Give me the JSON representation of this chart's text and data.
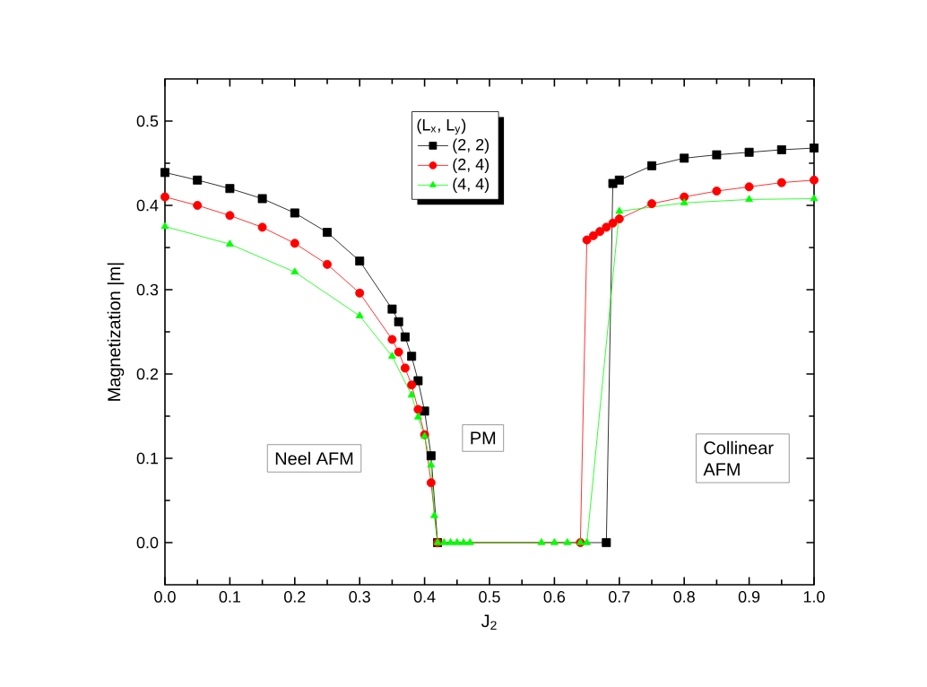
{
  "chart_data": {
    "type": "line",
    "xlabel": "J$_{2}$",
    "ylabel": "Magnetization |m|",
    "legend_title": "(L$_{x}$, L$_{y}$)",
    "legend": "top",
    "grid": false,
    "xlim": [
      0,
      1
    ],
    "ylim": [
      -0.05,
      0.55
    ],
    "xticks": [
      {
        "value": 0,
        "label": "0.0"
      },
      {
        "value": 0.1,
        "label": "0.1"
      },
      {
        "value": 0.2,
        "label": "0.2"
      },
      {
        "value": 0.3,
        "label": "0.3"
      },
      {
        "value": 0.4,
        "label": "0.4"
      },
      {
        "value": 0.5,
        "label": "0.5"
      },
      {
        "value": 0.6,
        "label": "0.6"
      },
      {
        "value": 0.7,
        "label": "0.7"
      },
      {
        "value": 0.8,
        "label": "0.8"
      },
      {
        "value": 0.9,
        "label": "0.9"
      },
      {
        "value": 1,
        "label": "1.0"
      }
    ],
    "yticks": [
      {
        "value": 0,
        "label": "0.0"
      },
      {
        "value": 0.1,
        "label": "0.1"
      },
      {
        "value": 0.2,
        "label": "0.2"
      },
      {
        "value": 0.3,
        "label": "0.3"
      },
      {
        "value": 0.4,
        "label": "0.4"
      },
      {
        "value": 0.5,
        "label": "0.5"
      }
    ],
    "annotations": [
      "Neel AFM",
      "PM",
      "Collinear AFM"
    ],
    "series": [
      {
        "name": "(2, 2)",
        "color": "#000000",
        "marker": "square",
        "x": [
          0,
          0.05,
          0.1,
          0.15,
          0.2,
          0.25,
          0.3,
          0.35,
          0.36,
          0.37,
          0.38,
          0.39,
          0.4,
          0.41,
          0.42,
          0.68,
          0.69,
          0.7,
          0.75,
          0.8,
          0.85,
          0.9,
          0.95,
          1.0
        ],
        "values": [
          0.439,
          0.43,
          0.42,
          0.408,
          0.391,
          0.368,
          0.334,
          0.277,
          0.262,
          0.244,
          0.221,
          0.192,
          0.156,
          0.103,
          0.0,
          0.0,
          0.426,
          0.43,
          0.447,
          0.456,
          0.46,
          0.463,
          0.466,
          0.468
        ]
      },
      {
        "name": "(2, 4)",
        "color": "#ff0000",
        "marker": "circle",
        "x": [
          0,
          0.05,
          0.1,
          0.15,
          0.2,
          0.25,
          0.3,
          0.35,
          0.36,
          0.37,
          0.38,
          0.39,
          0.4,
          0.41,
          0.42,
          0.64,
          0.65,
          0.66,
          0.67,
          0.68,
          0.69,
          0.7,
          0.75,
          0.8,
          0.85,
          0.9,
          0.95,
          1.0
        ],
        "values": [
          0.41,
          0.4,
          0.388,
          0.374,
          0.355,
          0.33,
          0.296,
          0.241,
          0.226,
          0.207,
          0.187,
          0.158,
          0.128,
          0.071,
          0.0,
          0.0,
          0.359,
          0.364,
          0.369,
          0.374,
          0.379,
          0.384,
          0.402,
          0.41,
          0.417,
          0.422,
          0.427,
          0.43
        ]
      },
      {
        "name": "(4, 4)",
        "color": "#00ff00",
        "marker": "triangle",
        "x": [
          0,
          0.1,
          0.2,
          0.3,
          0.35,
          0.38,
          0.39,
          0.4,
          0.41,
          0.415,
          0.42,
          0.43,
          0.44,
          0.45,
          0.46,
          0.47,
          0.58,
          0.6,
          0.62,
          0.64,
          0.65,
          0.7,
          0.8,
          0.9,
          1.0
        ],
        "values": [
          0.375,
          0.354,
          0.321,
          0.269,
          0.221,
          0.175,
          0.149,
          0.126,
          0.092,
          0.032,
          0.0,
          0.0,
          0.0,
          0.0,
          0.0,
          0.0,
          0.0,
          0.0,
          0.0,
          0.0,
          0.0,
          0.393,
          0.403,
          0.407,
          0.408
        ]
      }
    ]
  }
}
